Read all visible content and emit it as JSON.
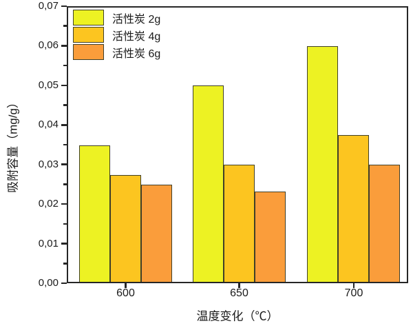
{
  "chart_data": {
    "type": "bar",
    "title": "",
    "xlabel": "温度变化（℃）",
    "ylabel": "吸附容量（mg/g）",
    "categories": [
      "600",
      "650",
      "700"
    ],
    "series": [
      {
        "name": "活性炭 2g",
        "color": "#edf223",
        "values": [
          0.035,
          0.05,
          0.06
        ]
      },
      {
        "name": "活性炭 4g",
        "color": "#fcc520",
        "values": [
          0.0275,
          0.03,
          0.0375
        ]
      },
      {
        "name": "活性炭 6g",
        "color": "#fa9d3b",
        "values": [
          0.025,
          0.0233,
          0.03
        ]
      }
    ],
    "ylim": [
      0,
      0.07
    ],
    "y_major_step": 0.01,
    "y_minor_step": 0.005,
    "y_tick_labels": [
      "0,00",
      "0,01",
      "0,02",
      "0,03",
      "0,04",
      "0,05",
      "0,06",
      "0,07"
    ],
    "decimal_separator": ",",
    "grid": false,
    "legend_position": "top-left",
    "plot_frame": true,
    "colors": {
      "axis": "#262626",
      "bar_border": "#3f3f28",
      "background": "#ffffff",
      "text": "#1a1a1a"
    }
  }
}
